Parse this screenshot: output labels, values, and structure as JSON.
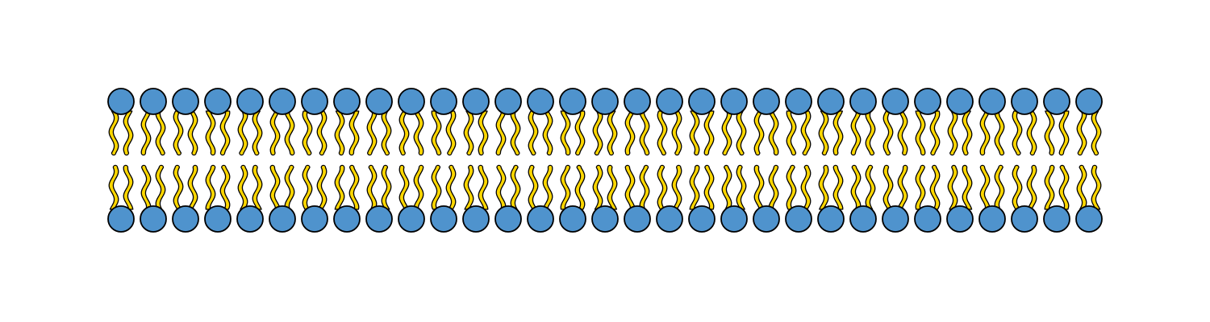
{
  "diagram": {
    "type": "lipid-bilayer",
    "lipids_per_leaflet": 31,
    "leaflets": [
      "upper",
      "lower"
    ],
    "tails_per_lipid": 2,
    "colors": {
      "background": "#ffffff",
      "head_fill": "#4f93cd",
      "head_stroke": "#000000",
      "tail_fill": "#ffd700",
      "tail_stroke": "#000000"
    }
  }
}
